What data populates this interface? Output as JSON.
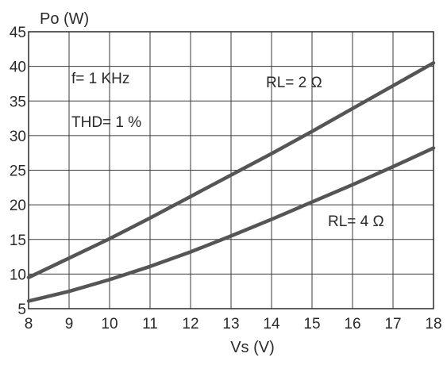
{
  "chart_data": {
    "type": "line",
    "x_axis": {
      "label": "Vs (V)",
      "range": [
        8,
        18
      ],
      "ticks": [
        8,
        9,
        10,
        11,
        12,
        13,
        14,
        15,
        16,
        17,
        18
      ]
    },
    "y_axis": {
      "label": "Po (W)",
      "range": [
        5,
        45
      ],
      "ticks": [
        5,
        10,
        15,
        20,
        25,
        30,
        35,
        40,
        45
      ]
    },
    "grid": true,
    "legend": "none",
    "annotations": [
      {
        "id": "freq",
        "text": "f= 1 KHz"
      },
      {
        "id": "thd",
        "text": "THD= 1 %"
      }
    ],
    "series": [
      {
        "name": "RL= 2 Ω",
        "color": "#555555",
        "x": [
          8,
          9,
          10,
          11,
          12,
          13,
          14,
          15,
          16,
          17,
          18
        ],
        "y": [
          9.5,
          12.3,
          15.1,
          18.1,
          21.2,
          24.3,
          27.4,
          30.6,
          33.9,
          37.2,
          40.5
        ]
      },
      {
        "name": "RL= 4 Ω",
        "color": "#555555",
        "x": [
          8,
          9,
          10,
          11,
          12,
          13,
          14,
          15,
          16,
          17,
          18
        ],
        "y": [
          6.1,
          7.5,
          9.2,
          11.1,
          13.2,
          15.5,
          17.9,
          20.4,
          22.9,
          25.5,
          28.2
        ]
      }
    ]
  }
}
